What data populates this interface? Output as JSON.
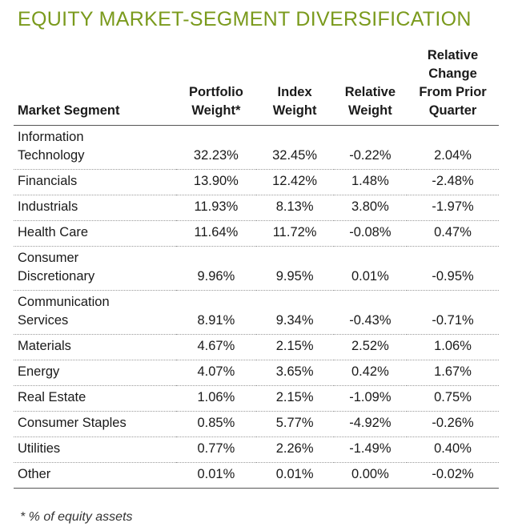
{
  "title": "EQUITY MARKET-SEGMENT DIVERSIFICATION",
  "headers": {
    "segment": "Market Segment",
    "portfolio_weight": "Portfolio\nWeight*",
    "index_weight": "Index\nWeight",
    "relative_weight": "Relative\nWeight",
    "relative_change": "Relative\nChange\nFrom Prior\nQuarter"
  },
  "rows": [
    {
      "segment": "Information\nTechnology",
      "portfolio_weight": "32.23%",
      "index_weight": "32.45%",
      "relative_weight": "-0.22%",
      "relative_change": "2.04%"
    },
    {
      "segment": "Financials",
      "portfolio_weight": "13.90%",
      "index_weight": "12.42%",
      "relative_weight": "1.48%",
      "relative_change": "-2.48%"
    },
    {
      "segment": "Industrials",
      "portfolio_weight": "11.93%",
      "index_weight": "8.13%",
      "relative_weight": "3.80%",
      "relative_change": "-1.97%"
    },
    {
      "segment": "Health Care",
      "portfolio_weight": "11.64%",
      "index_weight": "11.72%",
      "relative_weight": "-0.08%",
      "relative_change": "0.47%"
    },
    {
      "segment": "Consumer\nDiscretionary",
      "portfolio_weight": "9.96%",
      "index_weight": "9.95%",
      "relative_weight": "0.01%",
      "relative_change": "-0.95%"
    },
    {
      "segment": "Communication\nServices",
      "portfolio_weight": "8.91%",
      "index_weight": "9.34%",
      "relative_weight": "-0.43%",
      "relative_change": "-0.71%"
    },
    {
      "segment": "Materials",
      "portfolio_weight": "4.67%",
      "index_weight": "2.15%",
      "relative_weight": "2.52%",
      "relative_change": "1.06%"
    },
    {
      "segment": "Energy",
      "portfolio_weight": "4.07%",
      "index_weight": "3.65%",
      "relative_weight": "0.42%",
      "relative_change": "1.67%"
    },
    {
      "segment": "Real Estate",
      "portfolio_weight": "1.06%",
      "index_weight": "2.15%",
      "relative_weight": "-1.09%",
      "relative_change": "0.75%"
    },
    {
      "segment": "Consumer Staples",
      "portfolio_weight": "0.85%",
      "index_weight": "5.77%",
      "relative_weight": "-4.92%",
      "relative_change": "-0.26%"
    },
    {
      "segment": "Utilities",
      "portfolio_weight": "0.77%",
      "index_weight": "2.26%",
      "relative_weight": "-1.49%",
      "relative_change": "0.40%"
    },
    {
      "segment": "Other",
      "portfolio_weight": "0.01%",
      "index_weight": "0.01%",
      "relative_weight": "0.00%",
      "relative_change": "-0.02%"
    }
  ],
  "footnote": "* % of equity assets",
  "colors": {
    "title": "#7a9a1c",
    "text": "#1a1a1a",
    "rule": "#555555",
    "dotted_rule": "#9a9a9a"
  }
}
